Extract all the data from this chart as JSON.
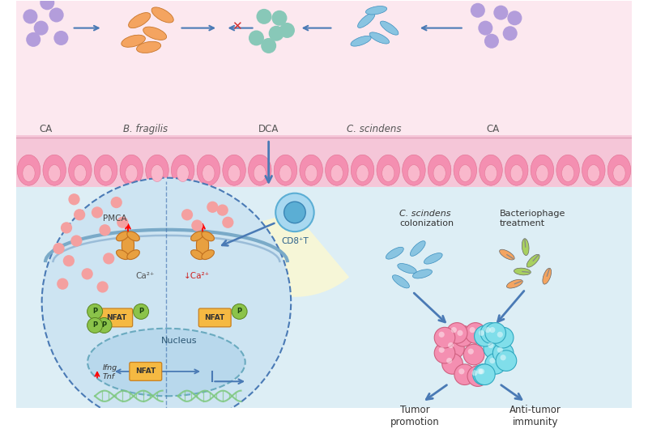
{
  "bg_color": "#ffffff",
  "top_lumen_color": "#fce8ef",
  "wall_color": "#f5c6d8",
  "wall_inner_color": "#f9d4e2",
  "lower_bg_color": "#deeef8",
  "cell_bg_color": "#cde4f2",
  "nucleus_bg_color": "#b8d8ec",
  "arrow_blue": "#4a7ab5",
  "cross_red": "#d32f2f",
  "CA_dots_color": "#b39ddb",
  "BF_color": "#f4a460",
  "DCA_color": "#88c8b8",
  "CS_color": "#89c4e1",
  "Ca_dot_color": "#f4a0a0",
  "NFAT_color": "#f5b942",
  "P_color": "#8bc34a",
  "dna_color": "#7ec87e",
  "tumor_pink": "#f48fb1",
  "tumor_blue": "#80deea",
  "spotlight_color": "#fffacd",
  "cd8_outer": "#a8d8f0",
  "cd8_inner": "#5baed4",
  "membrane_color": "#8ab4cc",
  "labels": {
    "CA_left": "CA",
    "B_fragilis": "B. fragilis",
    "DCA": "DCA",
    "C_scindens_top": "C. scindens",
    "CA_right": "CA",
    "CD8T": "CD8⁺T",
    "PMCA": "PMCA",
    "Ca2_left": "Ca²⁺",
    "Ca2_right": "↓Ca²⁺",
    "Nucleus": "Nucleus",
    "Ifng": "Ifng",
    "Tnf": "Tnf",
    "C_scindens_col1": "C. scindens",
    "C_scindens_col2": "colonization",
    "Bacteriophage1": "Bacteriophage",
    "Bacteriophage2": "treatment",
    "Tumor_promotion": "Tumor\npromotion",
    "Anti_tumor": "Anti-tumor\nimmunity"
  }
}
